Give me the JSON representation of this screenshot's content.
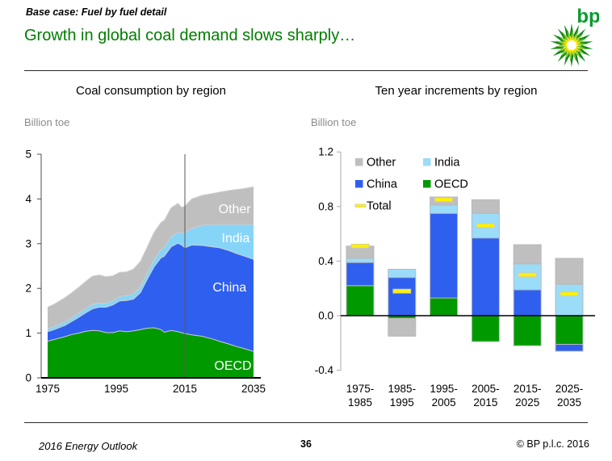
{
  "header": {
    "eyebrow": "Base case: Fuel by fuel detail",
    "title": "Growth in global coal demand slows sharply…",
    "logo_text": "bp"
  },
  "footer": {
    "left": "2016 Energy Outlook",
    "page_number": "36",
    "right": "© BP p.l.c. 2016"
  },
  "colors": {
    "title_green": "#007D00",
    "oecd": "#009A00",
    "china": "#2F5FEF",
    "india_area": "#86D5F8",
    "india_bar": "#9BDCF9",
    "other": "#BFBFBF",
    "total": "#FFF100",
    "unit_gray": "#8a8a8a"
  },
  "chart_data": [
    {
      "type": "area",
      "title": "Coal consumption by region",
      "unit_label": "Billion toe",
      "stacked": true,
      "ylim": [
        0,
        5
      ],
      "yticks": [
        0,
        1,
        2,
        3,
        4,
        5
      ],
      "xticks": [
        1975,
        1995,
        2015,
        2035
      ],
      "marker_year": 2015,
      "x": [
        1975,
        1977,
        1980,
        1982,
        1984,
        1986,
        1988,
        1990,
        1992,
        1994,
        1996,
        1998,
        2000,
        2002,
        2004,
        2006,
        2008,
        2009,
        2011,
        2013,
        2014,
        2015,
        2017,
        2020,
        2023,
        2025,
        2028,
        2030,
        2032,
        2035
      ],
      "series": [
        {
          "name": "OECD",
          "color": "#009A00",
          "values": [
            0.82,
            0.86,
            0.92,
            0.97,
            1.0,
            1.04,
            1.06,
            1.05,
            1.01,
            1.01,
            1.05,
            1.03,
            1.05,
            1.08,
            1.11,
            1.12,
            1.08,
            1.02,
            1.06,
            1.03,
            1.01,
            0.99,
            0.96,
            0.93,
            0.87,
            0.82,
            0.75,
            0.7,
            0.66,
            0.59
          ]
        },
        {
          "name": "China",
          "color": "#2F5FEF",
          "values": [
            0.21,
            0.22,
            0.25,
            0.29,
            0.35,
            0.41,
            0.48,
            0.53,
            0.57,
            0.62,
            0.67,
            0.7,
            0.71,
            0.82,
            1.09,
            1.36,
            1.6,
            1.7,
            1.87,
            1.98,
            1.96,
            1.92,
            2.01,
            2.03,
            2.06,
            2.09,
            2.09,
            2.08,
            2.07,
            2.06
          ]
        },
        {
          "name": "India",
          "color": "#86D5F8",
          "values": [
            0.07,
            0.07,
            0.08,
            0.08,
            0.09,
            0.1,
            0.1,
            0.09,
            0.09,
            0.09,
            0.1,
            0.11,
            0.12,
            0.13,
            0.14,
            0.16,
            0.18,
            0.2,
            0.22,
            0.25,
            0.26,
            0.34,
            0.37,
            0.45,
            0.5,
            0.52,
            0.59,
            0.65,
            0.7,
            0.78
          ]
        },
        {
          "name": "Other",
          "color": "#BFBFBF",
          "values": [
            0.48,
            0.5,
            0.54,
            0.56,
            0.58,
            0.6,
            0.63,
            0.63,
            0.59,
            0.56,
            0.54,
            0.53,
            0.55,
            0.57,
            0.58,
            0.61,
            0.61,
            0.6,
            0.65,
            0.64,
            0.58,
            0.59,
            0.66,
            0.67,
            0.69,
            0.72,
            0.76,
            0.78,
            0.8,
            0.84
          ]
        }
      ],
      "area_labels": [
        {
          "text": "Other",
          "year": 2029.5,
          "value": 3.77
        },
        {
          "text": "India",
          "year": 2029.8,
          "value": 3.12
        },
        {
          "text": "China",
          "year": 2028.0,
          "value": 2.02
        },
        {
          "text": "OECD",
          "year": 2029.0,
          "value": 0.27
        }
      ]
    },
    {
      "type": "bar",
      "title": "Ten year increments by region",
      "unit_label": "Billion toe",
      "stacked": true,
      "ylim": [
        -0.4,
        1.2
      ],
      "yticks": [
        {
          "v": 1.2,
          "label": "1.2"
        },
        {
          "v": 0.8,
          "label": "0.8"
        },
        {
          "v": 0.4,
          "label": "0.4"
        },
        {
          "v": 0.0,
          "label": "0.0"
        },
        {
          "v": -0.4,
          "label": "-0.4"
        }
      ],
      "categories": [
        [
          "1975-",
          "1985"
        ],
        [
          "1985-",
          "1995"
        ],
        [
          "1995-",
          "2005"
        ],
        [
          "2005-",
          "2015"
        ],
        [
          "2015-",
          "2025"
        ],
        [
          "2025-",
          "2035"
        ]
      ],
      "series": [
        {
          "name": "OECD",
          "color": "#009A00",
          "values": [
            0.22,
            -0.02,
            0.13,
            -0.19,
            -0.22,
            -0.21
          ]
        },
        {
          "name": "China",
          "color": "#2F5FEF",
          "values": [
            0.17,
            0.28,
            0.62,
            0.57,
            0.19,
            -0.05
          ]
        },
        {
          "name": "India",
          "color": "#9BDCF9",
          "values": [
            0.03,
            0.06,
            0.06,
            0.18,
            0.19,
            0.23
          ]
        },
        {
          "name": "Other",
          "color": "#BFBFBF",
          "values": [
            0.09,
            -0.13,
            0.06,
            0.1,
            0.14,
            0.19
          ]
        }
      ],
      "total": {
        "name": "Total",
        "color": "#FFF100",
        "values": [
          0.51,
          0.18,
          0.85,
          0.66,
          0.3,
          0.16
        ]
      },
      "legend": [
        "Other",
        "India",
        "China",
        "OECD",
        "Total"
      ],
      "legend_position": "upper-left"
    }
  ]
}
